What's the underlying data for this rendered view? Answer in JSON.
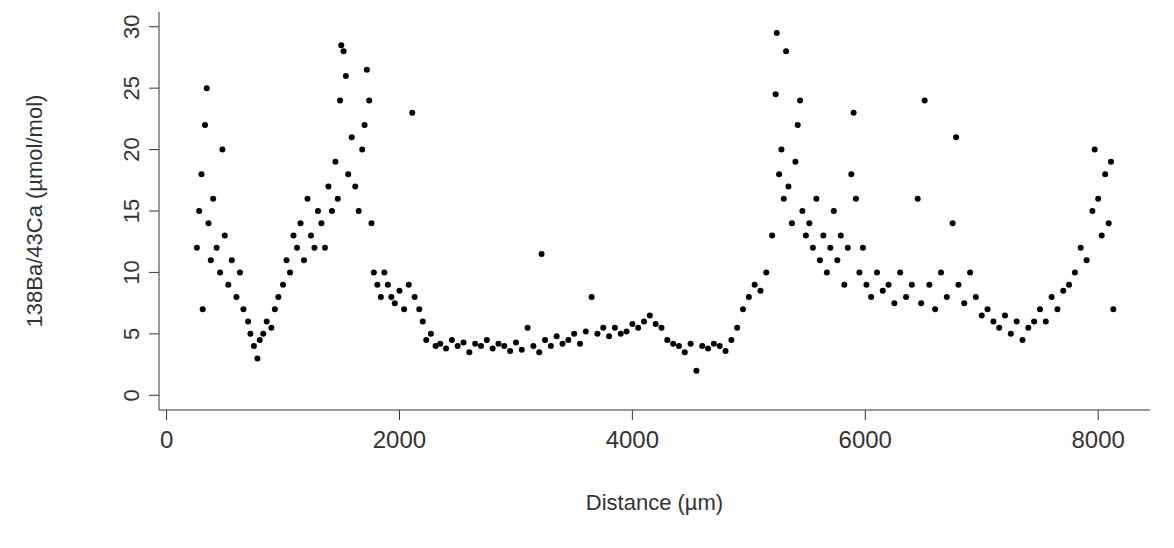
{
  "chart_data": {
    "type": "scatter",
    "x_label": "Distance (µm)",
    "y_label": "138Ba/43Ca (µmol/mol)",
    "xlim": [
      -65,
      8445
    ],
    "xticks": [
      0,
      2000,
      4000,
      6000,
      8000
    ],
    "ylim": [
      -1.2,
      31.2
    ],
    "yticks": [
      0,
      5,
      10,
      15,
      20,
      25,
      30
    ],
    "grid": false,
    "color": "#000000",
    "marker": "circle",
    "x": [
      260,
      280,
      300,
      310,
      330,
      345,
      360,
      380,
      400,
      430,
      460,
      480,
      500,
      530,
      560,
      600,
      630,
      660,
      700,
      720,
      750,
      780,
      800,
      830,
      860,
      900,
      930,
      960,
      1000,
      1030,
      1060,
      1090,
      1120,
      1150,
      1180,
      1210,
      1240,
      1270,
      1300,
      1330,
      1360,
      1390,
      1420,
      1450,
      1470,
      1490,
      1500,
      1520,
      1540,
      1560,
      1590,
      1620,
      1650,
      1680,
      1700,
      1720,
      1740,
      1760,
      1780,
      1810,
      1840,
      1870,
      1900,
      1930,
      1960,
      2000,
      2040,
      2080,
      2110,
      2130,
      2170,
      2200,
      2230,
      2270,
      2310,
      2350,
      2400,
      2450,
      2500,
      2550,
      2600,
      2650,
      2700,
      2750,
      2800,
      2850,
      2900,
      2950,
      3000,
      3050,
      3100,
      3150,
      3200,
      3220,
      3250,
      3300,
      3350,
      3400,
      3450,
      3500,
      3550,
      3600,
      3650,
      3700,
      3750,
      3800,
      3850,
      3900,
      3950,
      4000,
      4050,
      4100,
      4150,
      4200,
      4250,
      4300,
      4350,
      4400,
      4450,
      4500,
      4550,
      4600,
      4650,
      4700,
      4750,
      4800,
      4850,
      4900,
      4950,
      5000,
      5050,
      5100,
      5150,
      5200,
      5230,
      5240,
      5260,
      5280,
      5300,
      5320,
      5340,
      5370,
      5400,
      5420,
      5440,
      5460,
      5490,
      5520,
      5550,
      5580,
      5610,
      5640,
      5670,
      5700,
      5730,
      5760,
      5790,
      5820,
      5850,
      5880,
      5900,
      5920,
      5950,
      5980,
      6010,
      6050,
      6100,
      6150,
      6200,
      6250,
      6300,
      6350,
      6400,
      6450,
      6480,
      6510,
      6550,
      6600,
      6650,
      6700,
      6750,
      6780,
      6800,
      6850,
      6900,
      6950,
      7000,
      7050,
      7100,
      7150,
      7200,
      7250,
      7300,
      7350,
      7400,
      7450,
      7500,
      7550,
      7600,
      7650,
      7700,
      7750,
      7800,
      7850,
      7900,
      7950,
      7970,
      8000,
      8030,
      8060,
      8090,
      8110,
      8130
    ],
    "values": [
      12,
      15,
      18,
      7,
      22,
      25,
      14,
      11,
      16,
      12,
      10,
      20,
      13,
      9,
      11,
      8,
      10,
      7,
      6,
      5,
      4,
      3,
      4.5,
      5,
      6,
      5.5,
      7,
      8,
      9,
      11,
      10,
      13,
      12,
      14,
      11,
      16,
      13,
      12,
      15,
      14,
      12,
      17,
      15,
      19,
      16,
      24,
      28.5,
      28,
      26,
      18,
      21,
      17,
      15,
      20,
      22,
      26.5,
      24,
      14,
      10,
      9,
      8,
      10,
      9,
      8,
      7.5,
      8.5,
      7,
      9,
      23,
      8,
      7,
      6,
      4.5,
      5,
      4,
      4.2,
      3.8,
      4.5,
      4,
      4.3,
      3.5,
      4.2,
      4,
      4.5,
      3.8,
      4.2,
      4,
      3.6,
      4.3,
      3.7,
      5.5,
      4,
      3.5,
      11.5,
      4.5,
      4,
      4.8,
      4.2,
      4.5,
      5,
      4.2,
      5.2,
      8,
      5,
      5.5,
      4.8,
      5.5,
      5,
      5.2,
      5.8,
      5.5,
      6,
      6.5,
      5.8,
      5.5,
      4.5,
      4.2,
      4,
      3.5,
      4.2,
      2,
      4,
      3.8,
      4.2,
      4,
      3.6,
      4.5,
      5.5,
      7,
      8,
      9,
      8.5,
      10,
      13,
      24.5,
      29.5,
      18,
      20,
      16,
      28,
      17,
      14,
      19,
      22,
      24,
      15,
      13,
      14,
      12,
      16,
      11,
      13,
      10,
      12,
      15,
      11,
      13,
      9,
      12,
      18,
      23,
      16,
      10,
      12,
      9,
      8,
      10,
      8.5,
      9,
      7.5,
      10,
      8,
      9,
      16,
      7.5,
      24,
      9,
      7,
      10,
      8,
      14,
      21,
      9,
      7.5,
      10,
      8,
      6.5,
      7,
      6,
      5.5,
      6.5,
      5,
      6,
      4.5,
      5.5,
      6,
      7,
      6,
      8,
      7,
      8.5,
      9,
      10,
      12,
      11,
      15,
      20,
      16,
      13,
      18,
      14,
      19,
      7
    ]
  }
}
